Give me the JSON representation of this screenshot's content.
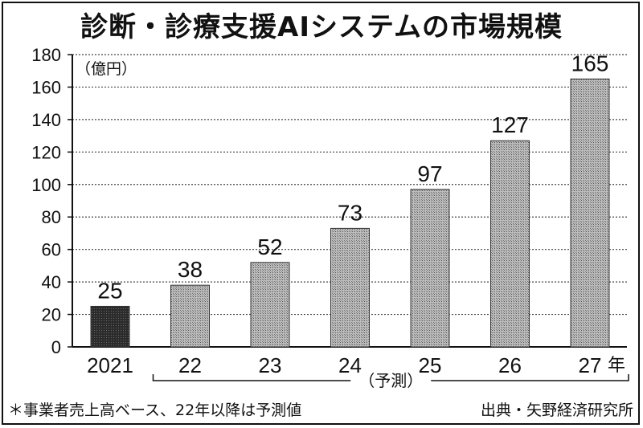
{
  "chart_data": {
    "type": "bar",
    "title": "診断・診療支援AIシステムの市場規模",
    "unit": "（億円）",
    "categories": [
      "2021",
      "22",
      "23",
      "24",
      "25",
      "26",
      "27"
    ],
    "values": [
      25,
      38,
      52,
      73,
      97,
      127,
      165
    ],
    "x_suffix": "年",
    "ylim": [
      0,
      180
    ],
    "yticks": [
      0,
      20,
      40,
      60,
      80,
      100,
      120,
      140,
      160,
      180
    ],
    "grid": true,
    "forecast_label": "（予測）",
    "forecast_start_index": 1,
    "colors": {
      "actual": "#333333",
      "forecast": "#9a9a9a"
    }
  },
  "footnote": "＊事業者売上高ベース、22年以降は予測値",
  "source": "出典・矢野経済研究所"
}
